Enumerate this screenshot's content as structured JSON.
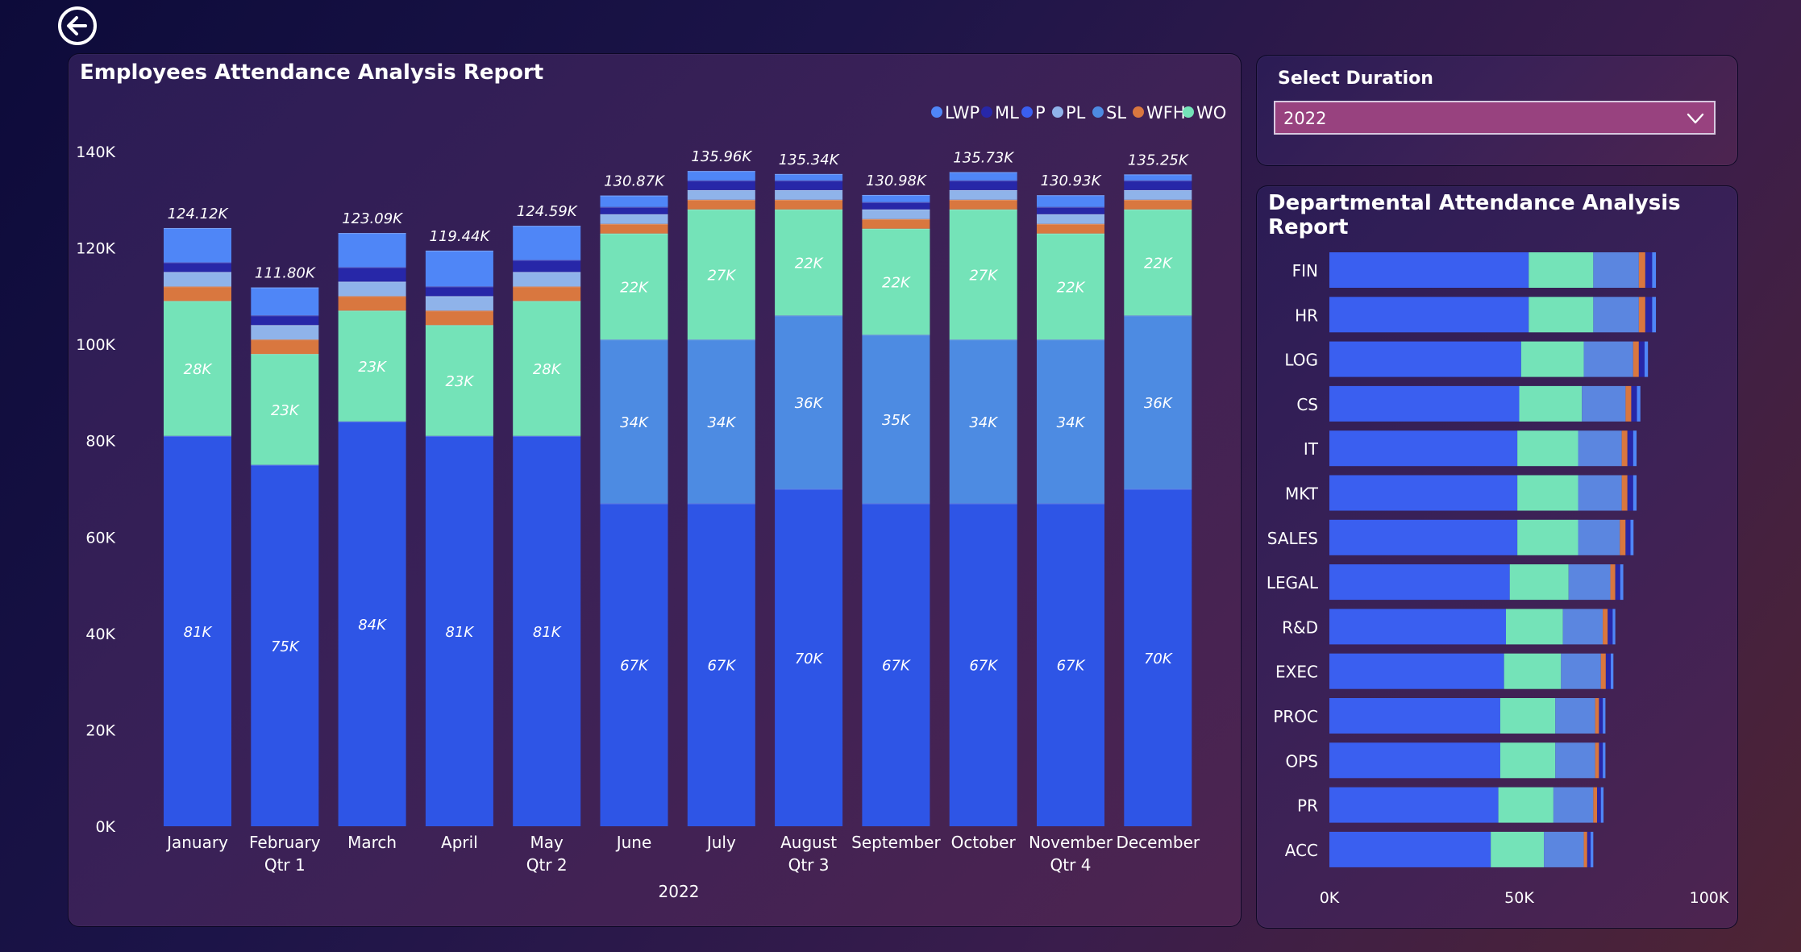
{
  "main_chart": {
    "title": "Employees Attendance Analysis Report",
    "legend": [
      {
        "name": "LWP",
        "color": "#4f86f7"
      },
      {
        "name": "ML",
        "color": "#2727a8"
      },
      {
        "name": "P",
        "color": "#3a5ff0"
      },
      {
        "name": "PL",
        "color": "#8fb3ea"
      },
      {
        "name": "SL",
        "color": "#4d8be2"
      },
      {
        "name": "WFH",
        "color": "#d9773f"
      },
      {
        "name": "WO",
        "color": "#74e3b8"
      }
    ],
    "quarter_labels": [
      "Qtr 1",
      "Qtr 2",
      "Qtr 3",
      "Qtr 4"
    ],
    "year_label": "2022"
  },
  "slicer": {
    "label": "Select Duration",
    "selected": "2022"
  },
  "dept_chart": {
    "title": "Departmental Attendance Analysis Report"
  },
  "chart_data": [
    {
      "type": "bar",
      "stacked": true,
      "title": "Employees Attendance Analysis Report",
      "categories": [
        "January",
        "February",
        "March",
        "April",
        "May",
        "June",
        "July",
        "August",
        "September",
        "October",
        "November",
        "December"
      ],
      "ylim": [
        0,
        140000
      ],
      "y_ticks": [
        "0K",
        "20K",
        "40K",
        "60K",
        "80K",
        "100K",
        "120K",
        "140K"
      ],
      "legend_position": "top-right",
      "stack_order": [
        "P",
        "SL",
        "WO",
        "WFH",
        "PL",
        "ML",
        "LWP"
      ],
      "series": [
        {
          "name": "P",
          "color": "#2e55e6",
          "values": [
            81000,
            75000,
            84000,
            81000,
            81000,
            67000,
            67000,
            70000,
            67000,
            67000,
            67000,
            70000
          ],
          "labels": [
            "81K",
            "75K",
            "84K",
            "81K",
            "81K",
            "67K",
            "67K",
            "70K",
            "67K",
            "67K",
            "67K",
            "70K"
          ]
        },
        {
          "name": "SL",
          "color": "#4d8be2",
          "values": [
            0,
            0,
            0,
            0,
            0,
            34000,
            34000,
            36000,
            35000,
            34000,
            34000,
            36000
          ],
          "labels": [
            "",
            "",
            "",
            "",
            "",
            "34K",
            "34K",
            "36K",
            "35K",
            "34K",
            "34K",
            "36K"
          ]
        },
        {
          "name": "WO",
          "color": "#74e3b8",
          "values": [
            28000,
            23000,
            23000,
            23000,
            28000,
            22000,
            27000,
            22000,
            22000,
            27000,
            22000,
            22000
          ],
          "labels": [
            "28K",
            "23K",
            "23K",
            "23K",
            "28K",
            "22K",
            "27K",
            "22K",
            "22K",
            "27K",
            "22K",
            "22K"
          ]
        },
        {
          "name": "WFH",
          "color": "#d9773f",
          "values": [
            3000,
            3000,
            3000,
            3000,
            3000,
            2000,
            2000,
            2000,
            2000,
            2000,
            2000,
            2000
          ]
        },
        {
          "name": "PL",
          "color": "#8fb3ea",
          "values": [
            3000,
            3000,
            3000,
            3000,
            3000,
            2000,
            2000,
            2000,
            2000,
            2000,
            2000,
            2000
          ]
        },
        {
          "name": "ML",
          "color": "#2727a8",
          "values": [
            2000,
            2000,
            3000,
            2000,
            2500,
            1500,
            2000,
            2000,
            1500,
            2000,
            1500,
            2000
          ]
        },
        {
          "name": "LWP",
          "color": "#4f86f7",
          "values": [
            7120,
            5800,
            7090,
            7440,
            7090,
            2370,
            1960,
            1340,
            1480,
            1730,
            2430,
            1250
          ]
        }
      ],
      "totals": [
        "124.12K",
        "111.80K",
        "123.09K",
        "119.44K",
        "124.59K",
        "130.87K",
        "135.96K",
        "135.34K",
        "130.98K",
        "135.73K",
        "130.93K",
        "135.25K"
      ],
      "total_values": [
        124120,
        111800,
        123090,
        119440,
        124590,
        130870,
        135960,
        135340,
        130980,
        135730,
        130930,
        135250
      ]
    },
    {
      "type": "bar",
      "orientation": "horizontal",
      "stacked": true,
      "title": "Departmental Attendance Analysis Report",
      "categories": [
        "FIN",
        "HR",
        "LOG",
        "CS",
        "IT",
        "MKT",
        "SALES",
        "LEGAL",
        "R&D",
        "EXEC",
        "PROC",
        "OPS",
        "PR",
        "ACC"
      ],
      "xlim": [
        0,
        100000
      ],
      "x_ticks": [
        "0K",
        "50K",
        "100K"
      ],
      "stack_order": [
        "P",
        "WO",
        "SL",
        "WFH",
        "ML",
        "LWP"
      ],
      "series": [
        {
          "name": "P",
          "color": "#3a5ff0",
          "values": [
            52500,
            52500,
            50500,
            50000,
            49500,
            49500,
            49500,
            47500,
            46500,
            46000,
            45000,
            45000,
            44500,
            42500
          ]
        },
        {
          "name": "WO",
          "color": "#74e3b8",
          "values": [
            17000,
            17000,
            16500,
            16500,
            16000,
            16000,
            16000,
            15500,
            15000,
            15000,
            14500,
            14500,
            14500,
            14000
          ]
        },
        {
          "name": "SL",
          "color": "#5b86e0",
          "values": [
            12000,
            12000,
            13000,
            11500,
            11500,
            11500,
            11000,
            11000,
            10500,
            10500,
            10500,
            10500,
            10500,
            10500
          ]
        },
        {
          "name": "WFH",
          "color": "#d9773f",
          "values": [
            1700,
            1700,
            1500,
            1500,
            1500,
            1500,
            1500,
            1300,
            1300,
            1300,
            1000,
            1000,
            1000,
            900
          ]
        },
        {
          "name": "ML",
          "color": "#2727a8",
          "values": [
            1800,
            1800,
            1500,
            1500,
            1500,
            1500,
            1300,
            1300,
            1300,
            1300,
            1000,
            1000,
            1000,
            900
          ]
        },
        {
          "name": "LWP",
          "color": "#4f86f7",
          "values": [
            1000,
            1000,
            900,
            900,
            900,
            900,
            800,
            800,
            700,
            700,
            700,
            700,
            700,
            700
          ]
        }
      ]
    }
  ]
}
